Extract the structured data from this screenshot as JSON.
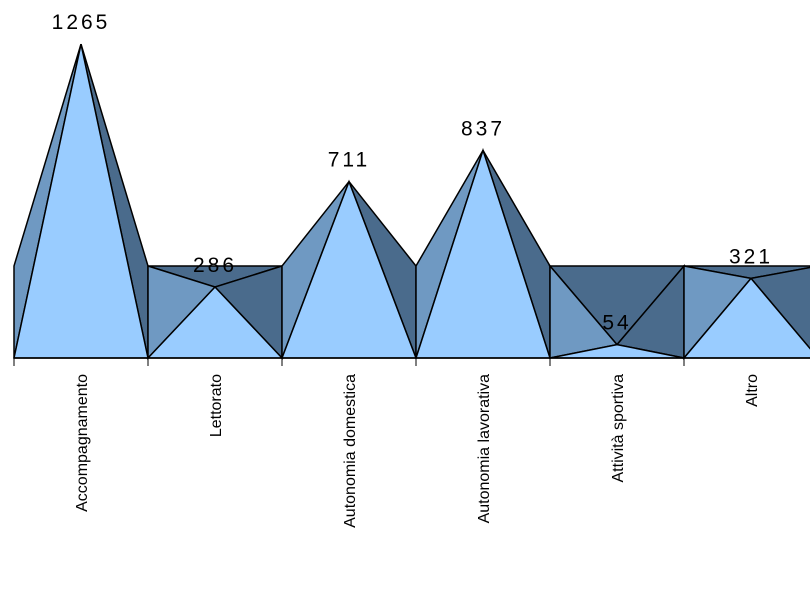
{
  "chart_data": {
    "type": "area",
    "categories": [
      "Accompagnamento",
      "Lettorato",
      "Autonomia domestica",
      "Autonomia lavorativa",
      "Attività sportiva",
      "Altro"
    ],
    "values": [
      1265,
      286,
      711,
      837,
      54,
      321
    ],
    "data_labels": [
      "1265",
      "286",
      "711",
      "837",
      "54",
      "321"
    ],
    "title": "",
    "xlabel": "",
    "ylabel": "",
    "ylim": [
      0,
      1330
    ],
    "grid": false,
    "legend": "none",
    "colors": {
      "front": "#99ccff",
      "left_side": "#6f99c2",
      "right_side": "#4a6b8c",
      "outline": "#000000",
      "axis": "#000000"
    }
  }
}
